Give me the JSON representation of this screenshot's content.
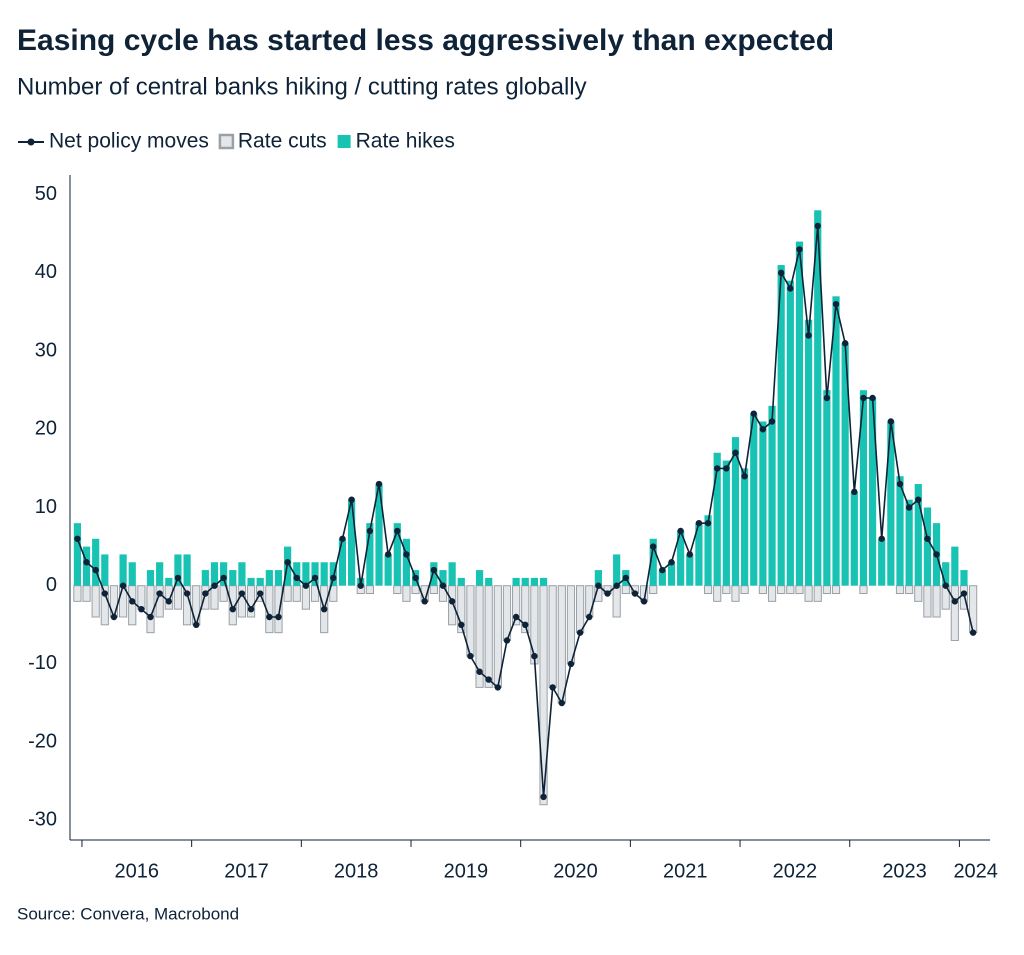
{
  "chart_data": {
    "type": "bar",
    "title": "Easing cycle has started less aggressively than expected",
    "subtitle": "Number of central banks hiking / cutting rates globally",
    "source": "Source: Convera, Macrobond",
    "categories": [
      null,
      "2016",
      null,
      null,
      null,
      null,
      null,
      null,
      null,
      null,
      null,
      null,
      null,
      "2017",
      null,
      null,
      null,
      null,
      null,
      null,
      null,
      null,
      null,
      null,
      null,
      "2018",
      null,
      null,
      null,
      null,
      null,
      null,
      null,
      null,
      null,
      null,
      null,
      "2019",
      null,
      null,
      null,
      null,
      null,
      null,
      null,
      null,
      null,
      null,
      null,
      "2020",
      null,
      null,
      null,
      null,
      null,
      null,
      null,
      null,
      null,
      null,
      null,
      "2021",
      null,
      null,
      null,
      null,
      null,
      null,
      null,
      null,
      null,
      null,
      null,
      "2022",
      null,
      null,
      null,
      null,
      null,
      null,
      null,
      null,
      null,
      null,
      null,
      "2023",
      null,
      null,
      null,
      null,
      null,
      null,
      null,
      null,
      null,
      null,
      null,
      "2024",
      null
    ],
    "series": [
      {
        "name": "Net policy moves",
        "type": "line",
        "color": "#0e2238",
        "values": [
          6,
          3,
          2,
          -1,
          -4,
          0,
          -2,
          -3,
          -4,
          -1,
          -2,
          1,
          -1,
          -5,
          -1,
          0,
          1,
          -3,
          -1,
          -3,
          -1,
          -4,
          -4,
          3,
          1,
          0,
          1,
          -3,
          1,
          6,
          11,
          0,
          7,
          13,
          4,
          7,
          4,
          1,
          -2,
          2,
          0,
          -2,
          -5,
          -9,
          -11,
          -12,
          -13,
          -7,
          -4,
          -5,
          -9,
          -27,
          -13,
          -15,
          -10,
          -6,
          -4,
          0,
          -1,
          0,
          1,
          -1,
          -2,
          5,
          2,
          3,
          7,
          4,
          8,
          8,
          15,
          15,
          17,
          14,
          22,
          20,
          21,
          40,
          38,
          43,
          32,
          46,
          24,
          36,
          31,
          12,
          24,
          24,
          6,
          21,
          13,
          10,
          11,
          6,
          4,
          0,
          -2,
          -1,
          -6
        ]
      },
      {
        "name": "Rate cuts",
        "type": "bar",
        "color": "#e4e7ea",
        "stroke": "#9aa0a6",
        "values": [
          -2,
          -2,
          -4,
          -5,
          -4,
          -4,
          -5,
          -3,
          -6,
          -4,
          -3,
          -3,
          -5,
          -5,
          -3,
          -3,
          -2,
          -5,
          -4,
          -4,
          -2,
          -6,
          -6,
          -2,
          -2,
          -3,
          -2,
          -6,
          -2,
          0,
          0,
          -1,
          -1,
          0,
          0,
          -1,
          -2,
          -1,
          -2,
          -1,
          -2,
          -5,
          -6,
          -9,
          -13,
          -13,
          -13,
          -7,
          -5,
          -6,
          -10,
          -28,
          -13,
          -15,
          -10,
          -6,
          -4,
          -2,
          -1,
          -4,
          -1,
          -1,
          -2,
          -1,
          0,
          0,
          0,
          0,
          0,
          -1,
          -2,
          -1,
          -2,
          -1,
          0,
          -1,
          -2,
          -1,
          -1,
          -1,
          -2,
          -2,
          -1,
          -1,
          0,
          0,
          -1,
          0,
          0,
          0,
          -1,
          -1,
          -2,
          -4,
          -4,
          -3,
          -7,
          -3,
          -6
        ]
      },
      {
        "name": "Rate hikes",
        "type": "bar",
        "color": "#19c3b3",
        "values": [
          8,
          5,
          6,
          4,
          0,
          4,
          3,
          0,
          2,
          3,
          1,
          4,
          4,
          0,
          2,
          3,
          3,
          2,
          3,
          1,
          1,
          2,
          2,
          5,
          3,
          3,
          3,
          3,
          3,
          6,
          11,
          1,
          8,
          13,
          4,
          8,
          6,
          2,
          0,
          3,
          2,
          3,
          1,
          0,
          2,
          1,
          0,
          0,
          1,
          1,
          1,
          1,
          0,
          0,
          0,
          0,
          0,
          2,
          0,
          4,
          2,
          0,
          0,
          6,
          2,
          3,
          7,
          4,
          8,
          9,
          17,
          16,
          19,
          15,
          22,
          21,
          23,
          41,
          39,
          44,
          34,
          48,
          25,
          37,
          31,
          12,
          25,
          24,
          6,
          21,
          14,
          11,
          13,
          10,
          8,
          3,
          5,
          2,
          0
        ]
      }
    ],
    "ylim": [
      -32,
      52
    ],
    "yticks": [
      -30,
      -20,
      -10,
      0,
      10,
      20,
      30,
      40,
      50
    ],
    "grid": false,
    "legend": "top-left"
  }
}
